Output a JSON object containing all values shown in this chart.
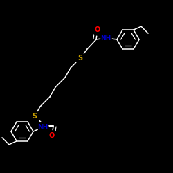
{
  "background_color": "#000000",
  "bond_color": "#ffffff",
  "atom_colors": {
    "O": "#ff0000",
    "NH": "#0000cd",
    "S": "#c8a000"
  },
  "bond_lw": 1.1,
  "figsize": [
    2.5,
    2.5
  ],
  "dpi": 100
}
